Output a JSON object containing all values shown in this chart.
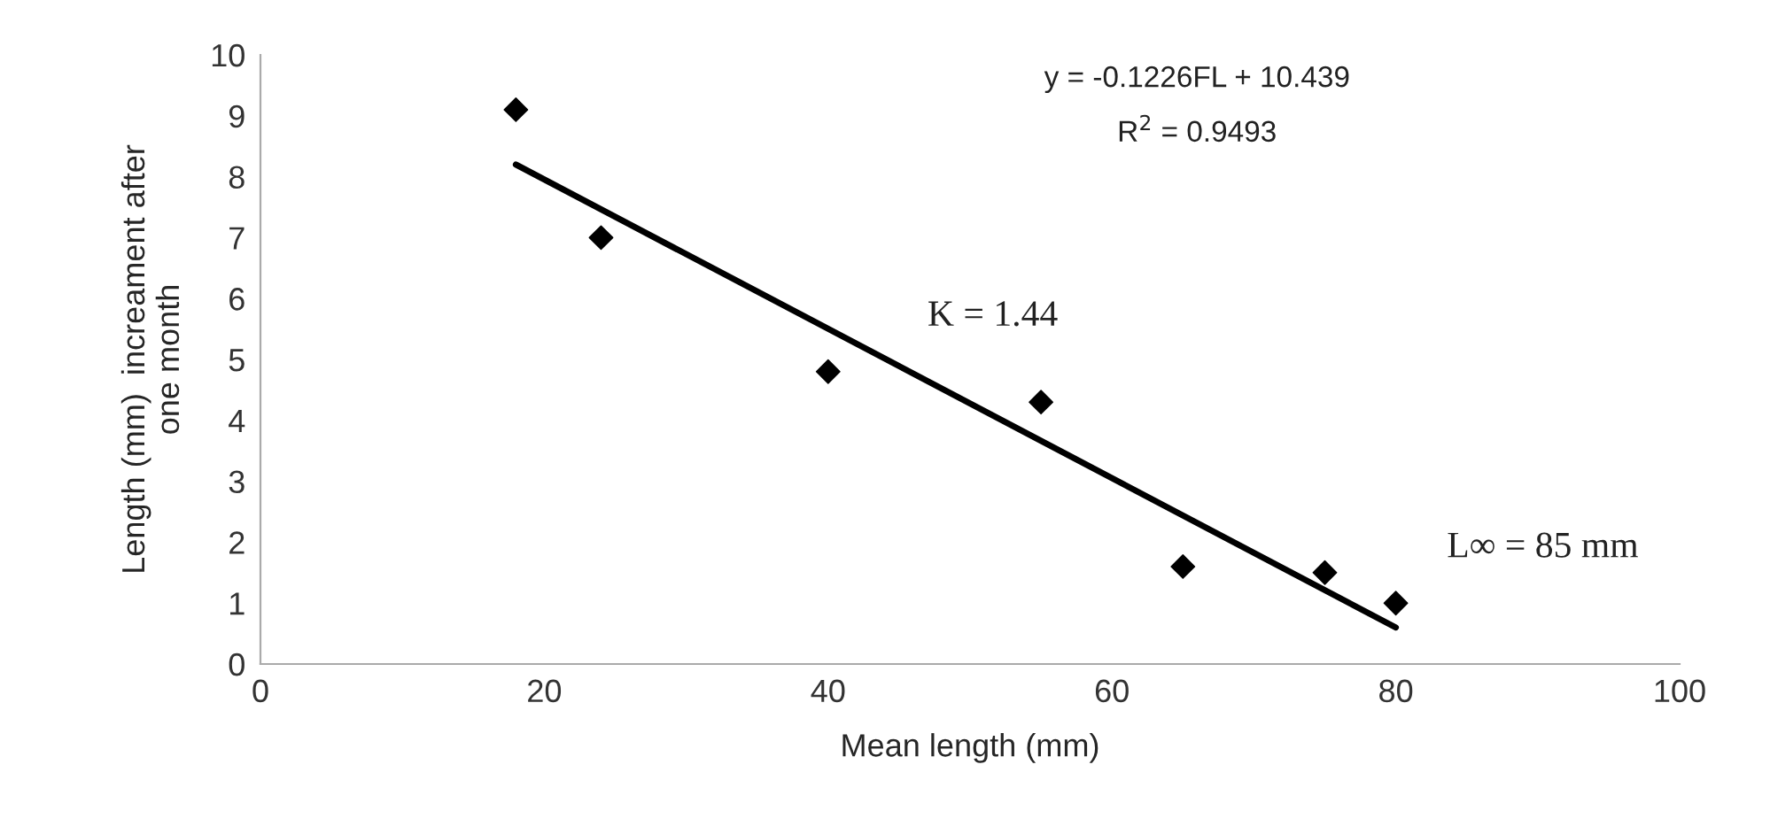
{
  "chart_data": {
    "type": "scatter",
    "xlabel": "Mean length (mm)",
    "ylabel": "Length (mm)  increament after\none month",
    "xlim": [
      0,
      100
    ],
    "xticks": [
      0,
      20,
      40,
      60,
      80,
      100
    ],
    "ylim": [
      0,
      10
    ],
    "yticks": [
      0,
      1,
      2,
      3,
      4,
      5,
      6,
      7,
      8,
      9,
      10
    ],
    "grid": false,
    "marker": "diamond",
    "series": [
      {
        "color": "#000000",
        "x": [
          18,
          24,
          40,
          55,
          65,
          75,
          80
        ],
        "values": [
          9.1,
          7.0,
          4.8,
          4.3,
          1.6,
          1.5,
          1.0
        ]
      },
      {
        "type": "line",
        "color": "#000000",
        "x": [
          18,
          80
        ],
        "values": [
          8.2,
          0.6
        ],
        "line_style": "solid",
        "marker": "none"
      }
    ],
    "annotations": [
      "y = -0.1226FL + 10.439",
      "R$^{2}$ = 0.9493",
      "K = 1.44",
      "L∞ = 85 mm"
    ]
  }
}
